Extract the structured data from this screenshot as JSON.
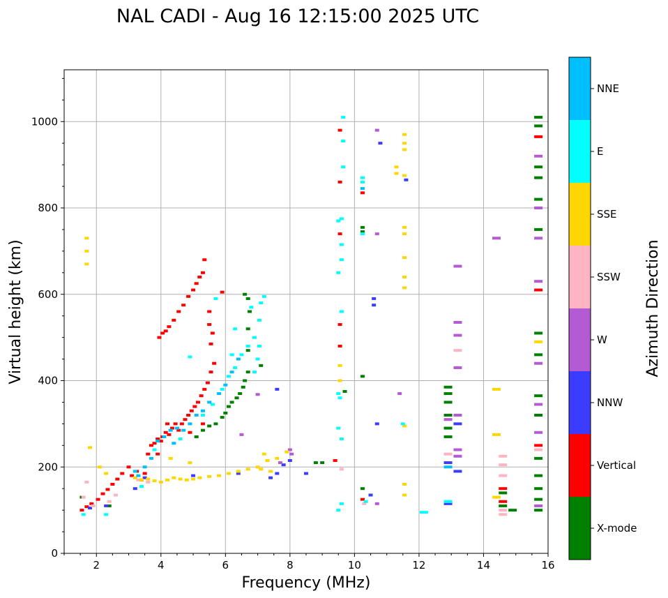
{
  "chart_data": {
    "type": "scatter",
    "title": "NAL CADI - Aug 16 12:15:00 2025 UTC",
    "xlabel": "Frequency (MHz)",
    "ylabel": "Virtual height (km)",
    "xlim": [
      1,
      16
    ],
    "ylim": [
      0,
      1120
    ],
    "xticks": [
      2,
      4,
      6,
      8,
      10,
      12,
      14,
      16
    ],
    "yticks": [
      0,
      200,
      400,
      600,
      800,
      1000
    ],
    "grid": true,
    "colorbar": {
      "label": "Azimuth Direction",
      "categories": [
        "X-mode",
        "Vertical",
        "NNW",
        "W",
        "SSW",
        "SSE",
        "E",
        "NNE"
      ],
      "colors": [
        "#008000",
        "#ff0000",
        "#3c3cff",
        "#b45ad2",
        "#ffb4c3",
        "#ffd700",
        "#00ffff",
        "#00bfff"
      ]
    },
    "series": [
      {
        "name": "Vertical",
        "points": [
          [
            1.55,
            100
          ],
          [
            1.7,
            108
          ],
          [
            1.85,
            115
          ],
          [
            2.05,
            125
          ],
          [
            2.2,
            138
          ],
          [
            2.35,
            148
          ],
          [
            2.5,
            160
          ],
          [
            2.65,
            172
          ],
          [
            2.8,
            185
          ],
          [
            3.0,
            200
          ],
          [
            3.1,
            180
          ],
          [
            3.25,
            190
          ],
          [
            3.4,
            170
          ],
          [
            3.5,
            185
          ],
          [
            3.6,
            230
          ],
          [
            3.7,
            250
          ],
          [
            3.8,
            255
          ],
          [
            3.9,
            265
          ],
          [
            4.0,
            260
          ],
          [
            4.05,
            270
          ],
          [
            4.15,
            280
          ],
          [
            4.25,
            275
          ],
          [
            4.35,
            290
          ],
          [
            4.45,
            300
          ],
          [
            4.55,
            285
          ],
          [
            4.65,
            300
          ],
          [
            4.75,
            310
          ],
          [
            4.85,
            320
          ],
          [
            4.95,
            330
          ],
          [
            5.05,
            340
          ],
          [
            5.15,
            350
          ],
          [
            5.25,
            365
          ],
          [
            5.35,
            380
          ],
          [
            5.45,
            395
          ],
          [
            5.55,
            420
          ],
          [
            5.65,
            440
          ],
          [
            5.55,
            485
          ],
          [
            5.6,
            510
          ],
          [
            5.5,
            530
          ],
          [
            5.5,
            560
          ],
          [
            3.95,
            500
          ],
          [
            4.05,
            510
          ],
          [
            4.15,
            515
          ],
          [
            4.25,
            525
          ],
          [
            4.4,
            540
          ],
          [
            4.55,
            560
          ],
          [
            4.7,
            575
          ],
          [
            4.85,
            595
          ],
          [
            5.0,
            610
          ],
          [
            5.1,
            625
          ],
          [
            5.2,
            640
          ],
          [
            5.3,
            650
          ],
          [
            5.35,
            680
          ],
          [
            5.9,
            605
          ],
          [
            4.2,
            300
          ],
          [
            4.9,
            280
          ],
          [
            5.3,
            300
          ],
          [
            3.9,
            230
          ],
          [
            9.55,
            980
          ],
          [
            9.55,
            860
          ],
          [
            9.55,
            740
          ],
          [
            9.55,
            530
          ],
          [
            9.55,
            480
          ],
          [
            10.25,
            835
          ],
          [
            10.25,
            125
          ],
          [
            15.7,
            965
          ],
          [
            15.7,
            610
          ],
          [
            15.7,
            250
          ],
          [
            9.4,
            215
          ],
          [
            14.6,
            150
          ],
          [
            14.6,
            120
          ]
        ]
      },
      {
        "name": "X-mode",
        "points": [
          [
            1.55,
            130
          ],
          [
            2.4,
            110
          ],
          [
            5.1,
            270
          ],
          [
            5.3,
            285
          ],
          [
            5.5,
            295
          ],
          [
            5.7,
            300
          ],
          [
            5.9,
            315
          ],
          [
            6.0,
            325
          ],
          [
            6.1,
            340
          ],
          [
            6.2,
            350
          ],
          [
            6.35,
            360
          ],
          [
            6.45,
            370
          ],
          [
            6.55,
            385
          ],
          [
            6.6,
            400
          ],
          [
            6.7,
            420
          ],
          [
            6.7,
            470
          ],
          [
            6.7,
            520
          ],
          [
            6.75,
            560
          ],
          [
            6.7,
            590
          ],
          [
            6.6,
            600
          ],
          [
            7.1,
            435
          ],
          [
            8.8,
            210
          ],
          [
            9.0,
            210
          ],
          [
            9.7,
            375
          ],
          [
            10.25,
            410
          ],
          [
            10.25,
            745
          ],
          [
            10.25,
            755
          ],
          [
            10.25,
            150
          ],
          [
            12.9,
            385
          ],
          [
            12.9,
            370
          ],
          [
            12.9,
            350
          ],
          [
            12.9,
            320
          ],
          [
            12.9,
            290
          ],
          [
            12.9,
            270
          ],
          [
            14.6,
            140
          ],
          [
            14.6,
            110
          ],
          [
            14.9,
            100
          ],
          [
            15.7,
            1010
          ],
          [
            15.7,
            990
          ],
          [
            15.7,
            895
          ],
          [
            15.7,
            870
          ],
          [
            15.7,
            820
          ],
          [
            15.7,
            750
          ],
          [
            15.7,
            510
          ],
          [
            15.7,
            460
          ],
          [
            15.7,
            365
          ],
          [
            15.7,
            320
          ],
          [
            15.7,
            220
          ],
          [
            15.7,
            180
          ],
          [
            15.7,
            150
          ],
          [
            15.7,
            125
          ],
          [
            15.7,
            100
          ]
        ]
      },
      {
        "name": "NNW",
        "points": [
          [
            1.8,
            105
          ],
          [
            2.3,
            110
          ],
          [
            3.2,
            150
          ],
          [
            3.5,
            175
          ],
          [
            5.0,
            180
          ],
          [
            6.4,
            185
          ],
          [
            7.4,
            175
          ],
          [
            7.6,
            185
          ],
          [
            7.8,
            205
          ],
          [
            8.0,
            215
          ],
          [
            8.5,
            185
          ],
          [
            10.6,
            590
          ],
          [
            10.6,
            575
          ],
          [
            10.7,
            300
          ],
          [
            10.8,
            950
          ],
          [
            10.5,
            135
          ],
          [
            12.9,
            210
          ],
          [
            12.9,
            115
          ],
          [
            13.2,
            190
          ],
          [
            13.2,
            300
          ],
          [
            11.6,
            865
          ],
          [
            7.6,
            380
          ]
        ]
      },
      {
        "name": "W",
        "points": [
          [
            6.5,
            275
          ],
          [
            7.0,
            368
          ],
          [
            7.7,
            210
          ],
          [
            8.0,
            240
          ],
          [
            8.05,
            230
          ],
          [
            10.7,
            980
          ],
          [
            10.7,
            740
          ],
          [
            10.7,
            115
          ],
          [
            11.4,
            370
          ],
          [
            13.2,
            665
          ],
          [
            13.2,
            535
          ],
          [
            13.2,
            505
          ],
          [
            13.2,
            430
          ],
          [
            13.2,
            320
          ],
          [
            13.2,
            240
          ],
          [
            13.2,
            225
          ],
          [
            12.9,
            310
          ],
          [
            14.4,
            730
          ],
          [
            15.7,
            920
          ],
          [
            15.7,
            800
          ],
          [
            15.7,
            730
          ],
          [
            15.7,
            630
          ],
          [
            15.7,
            440
          ],
          [
            15.7,
            345
          ],
          [
            15.7,
            280
          ],
          [
            15.7,
            110
          ]
        ]
      },
      {
        "name": "SSW",
        "points": [
          [
            1.6,
            130
          ],
          [
            1.7,
            165
          ],
          [
            1.9,
            110
          ],
          [
            2.4,
            120
          ],
          [
            2.6,
            135
          ],
          [
            3.3,
            170
          ],
          [
            3.6,
            165
          ],
          [
            9.6,
            195
          ],
          [
            10.3,
            115
          ],
          [
            13.2,
            470
          ],
          [
            12.9,
            230
          ],
          [
            12.9,
            120
          ],
          [
            14.6,
            225
          ],
          [
            14.6,
            205
          ],
          [
            14.6,
            180
          ],
          [
            14.6,
            100
          ],
          [
            14.6,
            90
          ],
          [
            15.7,
            240
          ]
        ]
      },
      {
        "name": "SSE",
        "points": [
          [
            1.7,
            730
          ],
          [
            1.7,
            700
          ],
          [
            1.7,
            670
          ],
          [
            1.8,
            245
          ],
          [
            2.1,
            200
          ],
          [
            2.3,
            185
          ],
          [
            3.2,
            175
          ],
          [
            3.4,
            170
          ],
          [
            3.6,
            172
          ],
          [
            3.8,
            168
          ],
          [
            4.0,
            165
          ],
          [
            4.2,
            170
          ],
          [
            4.4,
            175
          ],
          [
            4.6,
            172
          ],
          [
            4.8,
            170
          ],
          [
            5.0,
            172
          ],
          [
            5.2,
            175
          ],
          [
            5.5,
            178
          ],
          [
            5.8,
            180
          ],
          [
            6.1,
            185
          ],
          [
            6.4,
            190
          ],
          [
            6.7,
            195
          ],
          [
            7.0,
            200
          ],
          [
            7.3,
            215
          ],
          [
            7.6,
            220
          ],
          [
            7.9,
            235
          ],
          [
            7.2,
            230
          ],
          [
            7.1,
            195
          ],
          [
            7.4,
            190
          ],
          [
            4.3,
            220
          ],
          [
            4.9,
            210
          ],
          [
            9.55,
            435
          ],
          [
            9.55,
            400
          ],
          [
            11.3,
            895
          ],
          [
            11.3,
            880
          ],
          [
            11.55,
            970
          ],
          [
            11.55,
            950
          ],
          [
            11.55,
            935
          ],
          [
            11.55,
            875
          ],
          [
            11.55,
            755
          ],
          [
            11.55,
            740
          ],
          [
            11.55,
            685
          ],
          [
            11.55,
            640
          ],
          [
            11.55,
            615
          ],
          [
            11.55,
            295
          ],
          [
            11.55,
            160
          ],
          [
            11.55,
            135
          ],
          [
            14.4,
            380
          ],
          [
            14.4,
            275
          ],
          [
            14.4,
            130
          ],
          [
            15.7,
            490
          ]
        ]
      },
      {
        "name": "E",
        "points": [
          [
            1.6,
            90
          ],
          [
            2.3,
            90
          ],
          [
            3.4,
            155
          ],
          [
            3.8,
            240
          ],
          [
            4.6,
            265
          ],
          [
            5.3,
            320
          ],
          [
            5.6,
            345
          ],
          [
            5.9,
            380
          ],
          [
            6.1,
            410
          ],
          [
            6.3,
            430
          ],
          [
            6.5,
            460
          ],
          [
            6.7,
            480
          ],
          [
            6.9,
            500
          ],
          [
            7.05,
            480
          ],
          [
            7.0,
            450
          ],
          [
            6.9,
            420
          ],
          [
            7.05,
            540
          ],
          [
            7.1,
            580
          ],
          [
            7.2,
            595
          ],
          [
            6.3,
            520
          ],
          [
            6.8,
            570
          ],
          [
            6.2,
            460
          ],
          [
            4.9,
            455
          ],
          [
            5.7,
            590
          ],
          [
            9.5,
            770
          ],
          [
            9.6,
            775
          ],
          [
            9.6,
            715
          ],
          [
            9.6,
            680
          ],
          [
            9.5,
            650
          ],
          [
            9.6,
            560
          ],
          [
            9.5,
            370
          ],
          [
            9.5,
            290
          ],
          [
            9.6,
            265
          ],
          [
            9.6,
            115
          ],
          [
            9.5,
            100
          ],
          [
            9.65,
            1010
          ],
          [
            9.65,
            955
          ],
          [
            9.65,
            895
          ],
          [
            10.25,
            860
          ],
          [
            10.25,
            870
          ],
          [
            10.25,
            740
          ],
          [
            10.35,
            120
          ],
          [
            12.15,
            95
          ],
          [
            12.9,
            120
          ],
          [
            9.55,
            360
          ],
          [
            11.5,
            300
          ]
        ]
      },
      {
        "name": "NNE",
        "points": [
          [
            3.2,
            190
          ],
          [
            3.5,
            200
          ],
          [
            3.7,
            220
          ],
          [
            3.9,
            260
          ],
          [
            4.1,
            270
          ],
          [
            4.3,
            285
          ],
          [
            4.5,
            290
          ],
          [
            4.7,
            285
          ],
          [
            4.9,
            300
          ],
          [
            5.1,
            320
          ],
          [
            5.3,
            330
          ],
          [
            5.5,
            350
          ],
          [
            5.8,
            370
          ],
          [
            6.0,
            390
          ],
          [
            6.2,
            420
          ],
          [
            6.4,
            450
          ],
          [
            3.3,
            180
          ],
          [
            4.4,
            255
          ],
          [
            10.25,
            845
          ],
          [
            12.9,
            200
          ]
        ]
      }
    ]
  }
}
